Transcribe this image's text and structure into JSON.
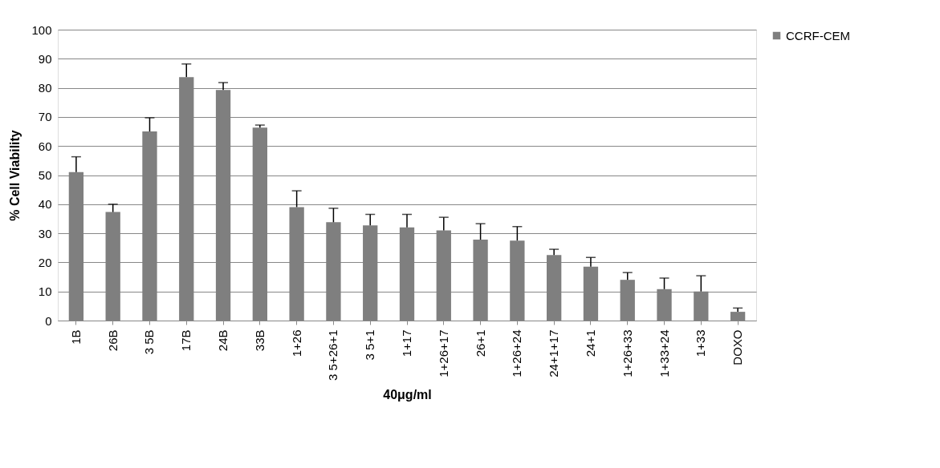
{
  "chart_data": {
    "type": "bar",
    "xlabel": "40μg/ml",
    "ylabel": "% Cell Viability",
    "categories": [
      "1B",
      "26B",
      "3 5B",
      "17B",
      "24B",
      "33B",
      "1+26",
      "3 5+26+1",
      "3 5+1",
      "1+17",
      "1+26+17",
      "26+1",
      "1+26+24",
      "24+1+17",
      "24+1",
      "1+26+33",
      "1+33+24",
      "1+33",
      "DOXO"
    ],
    "series": [
      {
        "name": "CCRF-CEM",
        "color": "#7f7f7f",
        "values": [
          51,
          37.3,
          65,
          83.7,
          79.3,
          66.3,
          39,
          33.8,
          32.7,
          32,
          31,
          27.8,
          27.5,
          22.5,
          18.5,
          14,
          10.8,
          10,
          3
        ],
        "errors": [
          [
            51,
            56.3
          ],
          [
            37.3,
            40
          ],
          [
            65,
            69.7
          ],
          [
            83.7,
            88.2
          ],
          [
            79.3,
            81.8
          ],
          [
            66.3,
            67.2
          ],
          [
            39,
            44.6
          ],
          [
            33.8,
            38.6
          ],
          [
            32.7,
            36.5
          ],
          [
            32,
            36.5
          ],
          [
            31,
            35.5
          ],
          [
            27.8,
            33.3
          ],
          [
            27.5,
            32.3
          ],
          [
            22.5,
            24.5
          ],
          [
            18.5,
            21.7
          ],
          [
            14,
            16.5
          ],
          [
            10.8,
            14.6
          ],
          [
            10,
            15.4
          ],
          [
            3,
            4.3
          ]
        ]
      }
    ],
    "ylim": [
      0,
      100
    ],
    "yticks": [
      0,
      10,
      20,
      30,
      40,
      50,
      60,
      70,
      80,
      90,
      100
    ],
    "grid": "y",
    "legend": "right"
  }
}
